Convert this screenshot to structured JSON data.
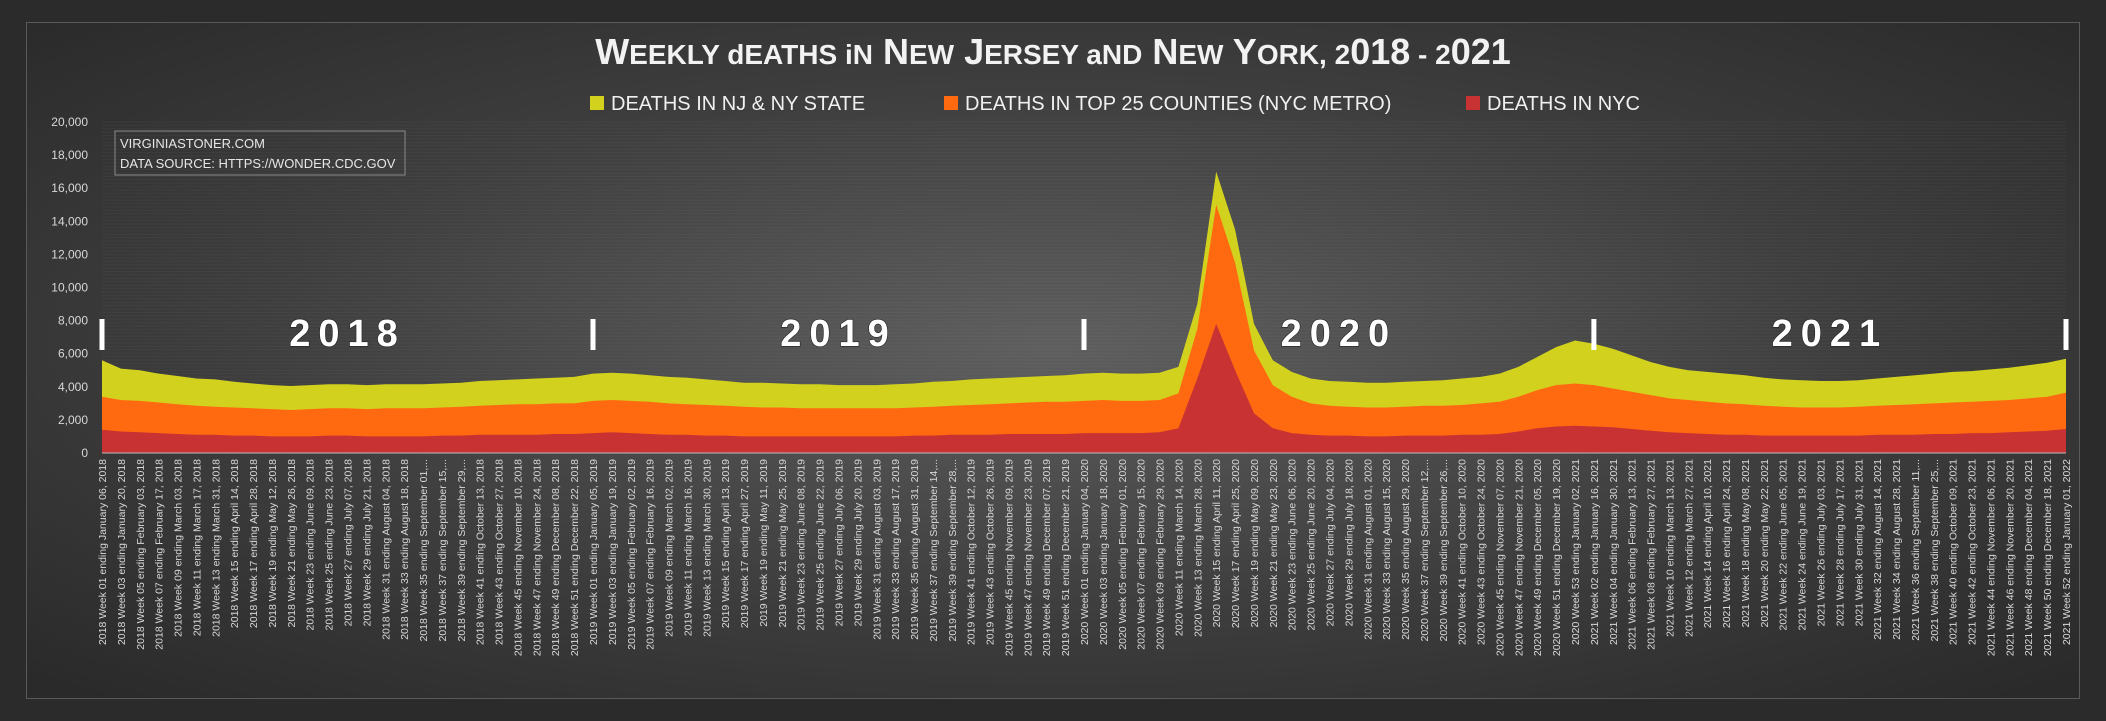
{
  "chart_data": {
    "type": "area",
    "title": "Weekly deaths in New Jersey and New York, 2018 - 2021",
    "source_note": [
      "VIRGINIASTONER.COM",
      "DATA SOURCE: HTTPS://WONDER.CDC.GOV"
    ],
    "ylim": [
      0,
      20000
    ],
    "y_ticks": [
      "0",
      "2,000",
      "4,000",
      "6,000",
      "8,000",
      "10,000",
      "12,000",
      "14,000",
      "16,000",
      "18,000",
      "20,000"
    ],
    "legend_position": "top-center",
    "years": [
      "2018",
      "2019",
      "2020",
      "2021"
    ],
    "x": [
      "2018 Week 01 ending January 06, 2018",
      "2018 Week 03 ending January 20, 2018",
      "2018 Week 05 ending February 03, 2018",
      "2018 Week 07 ending February 17, 2018",
      "2018 Week 09 ending March 03, 2018",
      "2018 Week 11 ending March 17, 2018",
      "2018 Week 13 ending March 31, 2018",
      "2018 Week 15 ending April 14, 2018",
      "2018 Week 17 ending April 28, 2018",
      "2018 Week 19 ending May 12, 2018",
      "2018 Week 21 ending May 26, 2018",
      "2018 Week 23 ending June 09, 2018",
      "2018 Week 25 ending June 23, 2018",
      "2018 Week 27 ending July 07, 2018",
      "2018 Week 29 ending July 21, 2018",
      "2018 Week 31 ending August 04, 2018",
      "2018 Week 33 ending August 18, 2018",
      "2018 Week 35 ending September 01,...",
      "2018 Week 37 ending September 15,...",
      "2018 Week 39 ending September 29,...",
      "2018 Week 41 ending October 13, 2018",
      "2018 Week 43 ending October 27, 2018",
      "2018 Week 45 ending November 10, 2018",
      "2018 Week 47 ending November 24, 2018",
      "2018 Week 49 ending December 08, 2018",
      "2018 Week 51 ending December 22, 2018",
      "2019 Week 01 ending January 05, 2019",
      "2019 Week 03 ending January 19, 2019",
      "2019 Week 05 ending February 02, 2019",
      "2019 Week 07 ending February 16, 2019",
      "2019 Week 09 ending March 02, 2019",
      "2019 Week 11 ending March 16, 2019",
      "2019 Week 13 ending March 30, 2019",
      "2019 Week 15 ending April 13, 2019",
      "2019 Week 17 ending April 27, 2019",
      "2019 Week 19 ending May 11, 2019",
      "2019 Week 21 ending May 25, 2019",
      "2019 Week 23 ending June 08, 2019",
      "2019 Week 25 ending June 22, 2019",
      "2019 Week 27 ending July 06, 2019",
      "2019 Week 29 ending July 20, 2019",
      "2019 Week 31 ending August 03, 2019",
      "2019 Week 33 ending August 17, 2019",
      "2019 Week 35 ending August 31, 2019",
      "2019 Week 37 ending September 14,...",
      "2019 Week 39 ending September 28,...",
      "2019 Week 41 ending October 12, 2019",
      "2019 Week 43 ending October 26, 2019",
      "2019 Week 45 ending November 09, 2019",
      "2019 Week 47 ending November 23, 2019",
      "2019 Week 49 ending December 07, 2019",
      "2019 Week 51 ending December 21, 2019",
      "2020 Week 01 ending January 04, 2020",
      "2020 Week 03 ending January 18, 2020",
      "2020 Week 05 ending February 01, 2020",
      "2020 Week 07 ending February 15, 2020",
      "2020 Week 09 ending February 29, 2020",
      "2020 Week 11 ending March 14, 2020",
      "2020 Week 13 ending March 28, 2020",
      "2020 Week 15 ending April 11, 2020",
      "2020 Week 17 ending April 25, 2020",
      "2020 Week 19 ending May 09, 2020",
      "2020 Week 21 ending May 23, 2020",
      "2020 Week 23 ending June 06, 2020",
      "2020 Week 25 ending June 20, 2020",
      "2020 Week 27 ending July 04, 2020",
      "2020 Week 29 ending July 18, 2020",
      "2020 Week 31 ending August 01, 2020",
      "2020 Week 33 ending August 15, 2020",
      "2020 Week 35 ending August 29, 2020",
      "2020 Week 37 ending September 12,...",
      "2020 Week 39 ending September 26,...",
      "2020 Week 41 ending October 10, 2020",
      "2020 Week 43 ending October 24, 2020",
      "2020 Week 45 ending November 07, 2020",
      "2020 Week 47 ending November 21, 2020",
      "2020 Week 49 ending December 05, 2020",
      "2020 Week 51 ending December 19, 2020",
      "2020 Week 53 ending January 02, 2021",
      "2021 Week 02 ending January 16, 2021",
      "2021 Week 04 ending January 30, 2021",
      "2021 Week 06 ending February 13, 2021",
      "2021 Week 08 ending February 27, 2021",
      "2021 Week 10 ending March 13, 2021",
      "2021 Week 12 ending March 27, 2021",
      "2021 Week 14 ending April 10, 2021",
      "2021 Week 16 ending April 24, 2021",
      "2021 Week 18 ending May 08, 2021",
      "2021 Week 20 ending May 22, 2021",
      "2021 Week 22 ending June 05, 2021",
      "2021 Week 24 ending June 19, 2021",
      "2021 Week 26 ending July 03, 2021",
      "2021 Week 28 ending July 17, 2021",
      "2021 Week 30 ending July 31, 2021",
      "2021 Week 32 ending August 14, 2021",
      "2021 Week 34 ending August 28, 2021",
      "2021 Week 36 ending September 11,...",
      "2021 Week 38 ending September 25,...",
      "2021 Week 40 ending October 09, 2021",
      "2021 Week 42 ending October 23, 2021",
      "2021 Week 44 ending November 06, 2021",
      "2021 Week 46 ending November 20, 2021",
      "2021 Week 48 ending December 04, 2021",
      "2021 Week 50 ending December 18, 2021",
      "2021 Week 52 ending January 01, 2022"
    ],
    "series": [
      {
        "name": "DEATHS IN NJ & NY STATE",
        "color": "#d2d21e",
        "values": [
          5600,
          5100,
          5000,
          4800,
          4650,
          4500,
          4450,
          4300,
          4200,
          4100,
          4050,
          4100,
          4150,
          4150,
          4100,
          4150,
          4150,
          4150,
          4200,
          4250,
          4350,
          4400,
          4450,
          4500,
          4550,
          4600,
          4800,
          4850,
          4800,
          4700,
          4600,
          4550,
          4450,
          4350,
          4250,
          4250,
          4200,
          4150,
          4150,
          4100,
          4100,
          4100,
          4150,
          4200,
          4300,
          4350,
          4450,
          4500,
          4550,
          4600,
          4650,
          4700,
          4800,
          4850,
          4800,
          4800,
          4850,
          5200,
          9000,
          17000,
          13500,
          7800,
          5600,
          4900,
          4500,
          4350,
          4300,
          4250,
          4250,
          4300,
          4350,
          4400,
          4500,
          4600,
          4800,
          5200,
          5800,
          6400,
          6800,
          6600,
          6300,
          5900,
          5500,
          5200,
          5000,
          4900,
          4800,
          4700,
          4550,
          4450,
          4400,
          4350,
          4350,
          4400,
          4500,
          4600,
          4700,
          4800,
          4900,
          4950,
          5050,
          5150,
          5300,
          5450,
          5700
        ]
      },
      {
        "name": "DEATHS IN TOP 25 COUNTIES (NYC METRO)",
        "color": "#ff6a10",
        "values": [
          3400,
          3200,
          3150,
          3050,
          2950,
          2850,
          2800,
          2750,
          2700,
          2650,
          2600,
          2650,
          2700,
          2700,
          2650,
          2700,
          2700,
          2700,
          2750,
          2800,
          2850,
          2900,
          2950,
          2950,
          3000,
          3000,
          3150,
          3200,
          3150,
          3100,
          3000,
          2950,
          2900,
          2850,
          2800,
          2750,
          2750,
          2700,
          2700,
          2700,
          2700,
          2700,
          2700,
          2750,
          2800,
          2850,
          2900,
          2950,
          3000,
          3050,
          3100,
          3100,
          3150,
          3200,
          3150,
          3150,
          3200,
          3600,
          7500,
          15000,
          11500,
          6200,
          4100,
          3400,
          3000,
          2850,
          2800,
          2750,
          2750,
          2800,
          2850,
          2850,
          2900,
          3000,
          3100,
          3400,
          3800,
          4100,
          4200,
          4100,
          3900,
          3700,
          3500,
          3300,
          3200,
          3100,
          3000,
          2950,
          2850,
          2800,
          2750,
          2750,
          2750,
          2800,
          2850,
          2900,
          2950,
          3000,
          3050,
          3100,
          3150,
          3200,
          3300,
          3400,
          3650
        ]
      },
      {
        "name": "DEATHS IN NYC",
        "color": "#c83232",
        "values": [
          1400,
          1300,
          1250,
          1200,
          1150,
          1100,
          1100,
          1050,
          1050,
          1000,
          1000,
          1000,
          1050,
          1050,
          1000,
          1000,
          1000,
          1000,
          1050,
          1050,
          1100,
          1100,
          1100,
          1100,
          1150,
          1150,
          1200,
          1250,
          1200,
          1150,
          1100,
          1100,
          1050,
          1050,
          1000,
          1000,
          1000,
          1000,
          1000,
          1000,
          1000,
          1000,
          1000,
          1050,
          1050,
          1100,
          1100,
          1100,
          1150,
          1150,
          1150,
          1150,
          1200,
          1200,
          1200,
          1200,
          1250,
          1500,
          4500,
          7800,
          5000,
          2400,
          1500,
          1200,
          1100,
          1050,
          1050,
          1000,
          1000,
          1050,
          1050,
          1050,
          1100,
          1100,
          1150,
          1300,
          1500,
          1600,
          1650,
          1600,
          1550,
          1450,
          1350,
          1250,
          1200,
          1150,
          1100,
          1100,
          1050,
          1050,
          1050,
          1050,
          1050,
          1050,
          1100,
          1100,
          1100,
          1150,
          1150,
          1200,
          1200,
          1250,
          1300,
          1350,
          1450
        ]
      }
    ]
  }
}
